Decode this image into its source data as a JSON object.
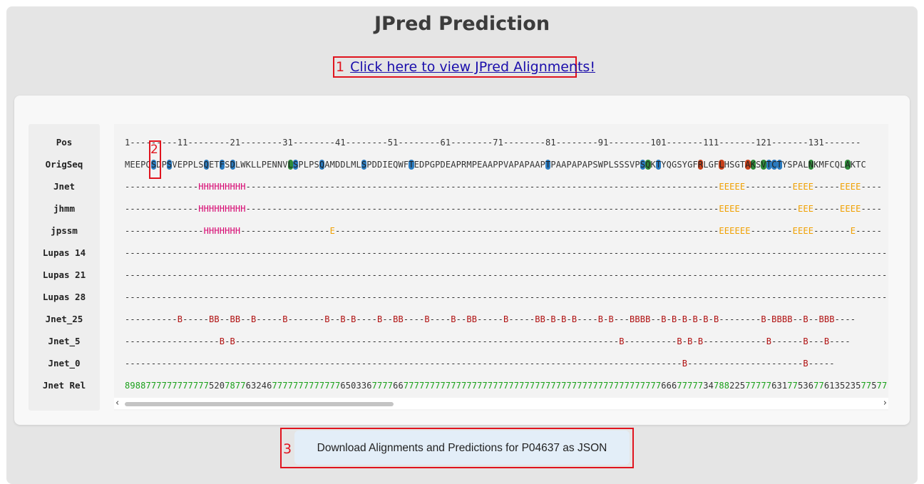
{
  "title": "JPred Prediction",
  "link": {
    "number": "1",
    "label": "Click here to view JPred Alignments!"
  },
  "annotations": {
    "two": "2",
    "three": "3"
  },
  "rows": [
    {
      "label": "Pos",
      "text": "1---------11--------21--------31--------41--------51--------61--------71--------81--------91--------101-------111-------121-------131-------"
    },
    {
      "label": "OrigSeq",
      "text": "MEEPQSDPSVEPPLSQETFSDLWKLLPENNVLSPLPSQAMDDLMLSPDDIEQWFTEDPGPDEAPRMPEAAPPVAPAPAAPTPAAPAPAPSWPLSSSVPSQKTYQGSYGFRLGFLHSGTAKSVTCTYSPALNKMFCQLAKTC"
    },
    {
      "label": "Jnet",
      "text": "--------------HHHHHHHHH------------------------------------------------------------------------------------------EEEEE---------EEEE-----EEEE----"
    },
    {
      "label": "jhmm",
      "text": "--------------HHHHHHHHH------------------------------------------------------------------------------------------EEEE-----------EEE-----EEEE----"
    },
    {
      "label": "jpssm",
      "text": "---------------HHHHHHH-----------------E-------------------------------------------------------------------------EEEEEE--------EEEE-------E-----"
    },
    {
      "label": "Lupas 14",
      "text": "--------------------------------------------------------------------------------------------------------------------------------------------------"
    },
    {
      "label": "Lupas 21",
      "text": "--------------------------------------------------------------------------------------------------------------------------------------------------"
    },
    {
      "label": "Lupas 28",
      "text": "--------------------------------------------------------------------------------------------------------------------------------------------------"
    },
    {
      "label": "Jnet_25",
      "text": "----------B-----BB--BB--B-----B-------B--B-B----B--BB----B----B--BB-----B-----BB-B-B-B----B-B---BBBB--B-B-B-B-B-B--------B-BBBB--B--BBB----"
    },
    {
      "label": "Jnet_5",
      "text": "------------------B-B-------------------------------------------------------------------------B----------B-B-B------------B------B---B----"
    },
    {
      "label": "Jnet_0",
      "text": "----------------------------------------------------------------------------------------------------------B----------------------B-----"
    },
    {
      "label": "Jnet Rel",
      "text": "8988777777777777520787763246777777777777765033677776677777777777777777777777777777777777777777777777776667777734788225777776317753677613523577577"
    }
  ],
  "download_button": {
    "label": "Download Alignments and Predictions for P04637 as JSON"
  },
  "colors": {
    "helix": "#d6006e",
    "strand": "#f0a000",
    "buried": "#b01010",
    "reliability": "#1aa01a",
    "highlight_blue": "#2a7bc0",
    "highlight_green": "#2e8b3a",
    "highlight_red": "#c8401a"
  }
}
